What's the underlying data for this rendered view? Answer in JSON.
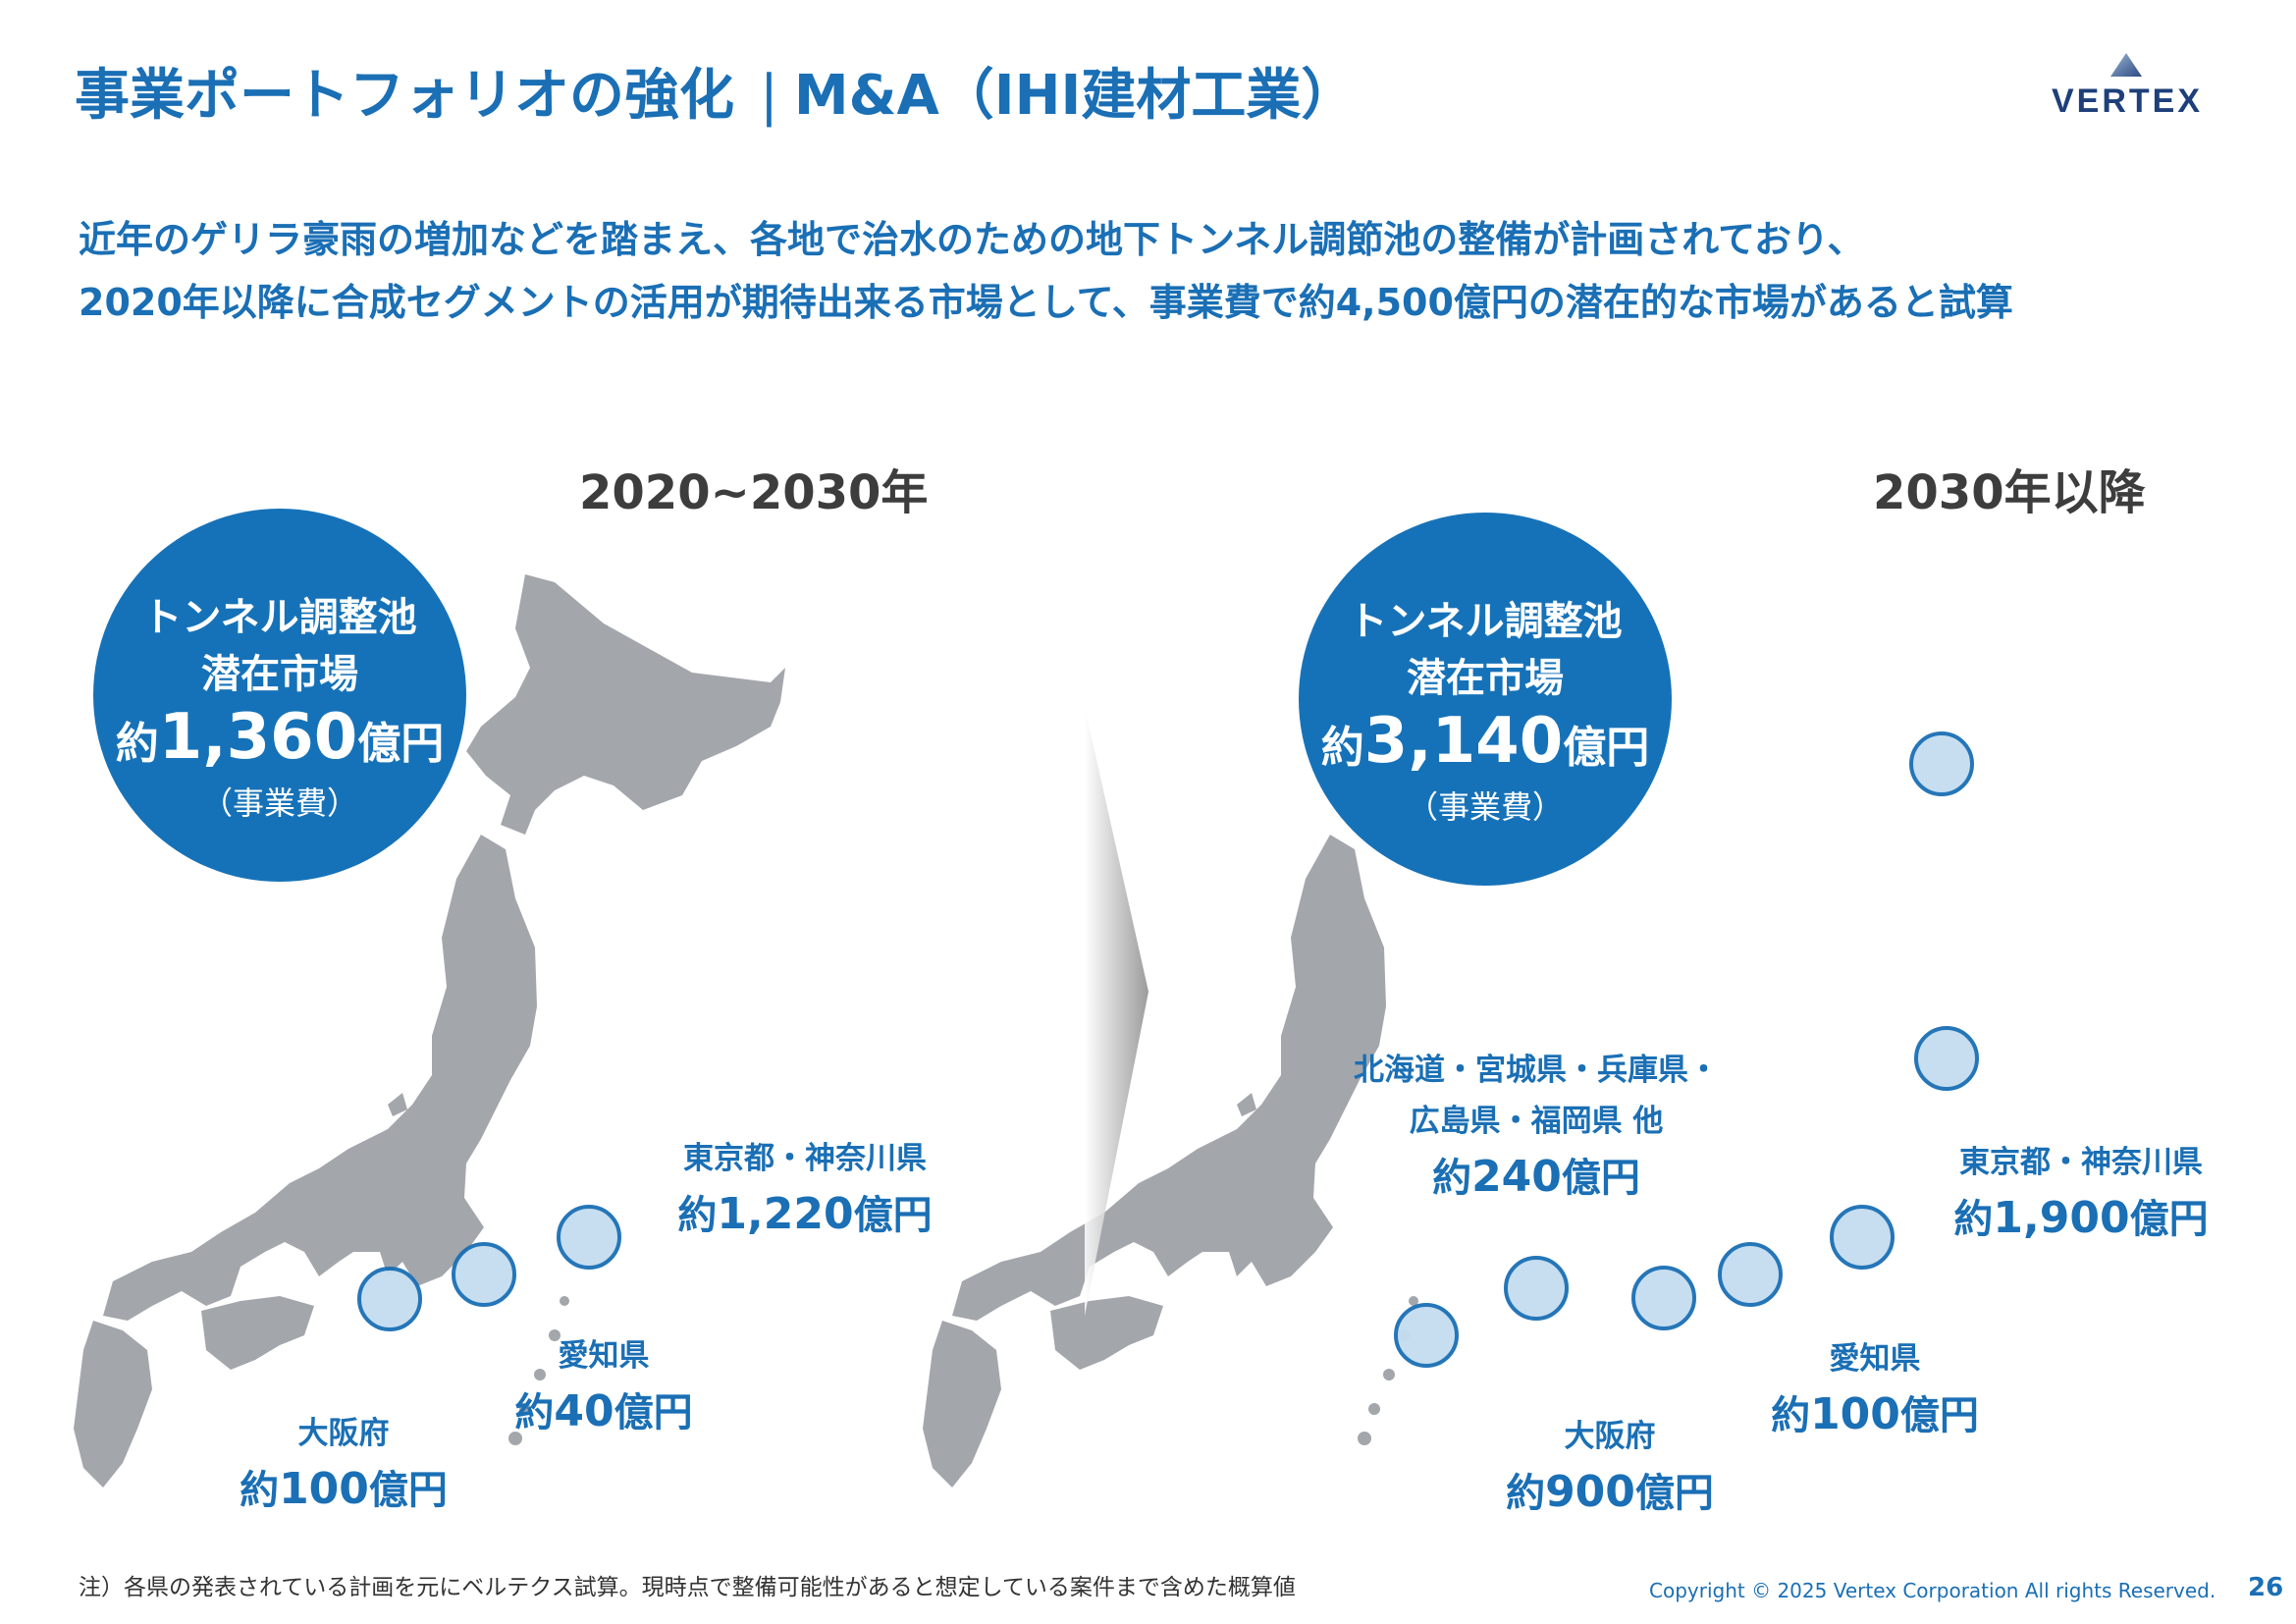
{
  "header": {
    "title_main": "事業ポートフォリオの強化",
    "title_separator": "|",
    "title_sub": "M&A（IHI建材工業）",
    "logo_text": "VERTEX"
  },
  "intro": {
    "line1": "近年のゲリラ豪雨の増加などを踏まえ、各地で治水のための地下トンネル調節池の整備が計画されており、",
    "line2": "2020年以降に合成セグメントの活用が期待出来る市場として、事業費で約4,500億円の潜在的な市場があると試算"
  },
  "left_panel": {
    "period": "2020~2030年",
    "circle": {
      "line1": "トンネル調整池",
      "line2": "潜在市場",
      "prefix": "約",
      "amount": "1,360",
      "suffix": "億円",
      "note": "（事業費）"
    },
    "regions": [
      {
        "name": "東京都・神奈川県",
        "prefix": "約",
        "amount": "1,220",
        "suffix": "億円"
      },
      {
        "name": "愛知県",
        "prefix": "約",
        "amount": "40",
        "suffix": "億円"
      },
      {
        "name": "大阪府",
        "prefix": "約",
        "amount": "100",
        "suffix": "億円"
      }
    ]
  },
  "right_panel": {
    "period": "2030年以降",
    "circle": {
      "line1": "トンネル調整池",
      "line2": "潜在市場",
      "prefix": "約",
      "amount": "3,140",
      "suffix": "億円",
      "note": "（事業費）"
    },
    "regions": [
      {
        "name": "東京都・神奈川県",
        "prefix": "約",
        "amount": "1,900",
        "suffix": "億円"
      },
      {
        "name": "愛知県",
        "prefix": "約",
        "amount": "100",
        "suffix": "億円"
      },
      {
        "name": "大阪府",
        "prefix": "約",
        "amount": "900",
        "suffix": "億円"
      },
      {
        "name": "北海道・宮城県・兵庫県・",
        "name2": "広島県・福岡県 他",
        "prefix": "約",
        "amount": "240",
        "suffix": "億円"
      }
    ]
  },
  "footer": {
    "note": "注）各県の発表されている計画を元にベルテクス試算。現時点で整備可能性があると想定している案件まで含めた概算値",
    "copyright": "Copyright © 2025 Vertex Corporation All rights Reserved.",
    "page_number": "26"
  },
  "colors": {
    "accent": "#1a6fb5",
    "circle_fill": "#1672b8",
    "map_gray": "#a3a6ab",
    "text_dark": "#3d3d3d"
  },
  "icons": {
    "logo_mark": "triangle-logo-icon",
    "transition": "arrow-right-icon"
  }
}
